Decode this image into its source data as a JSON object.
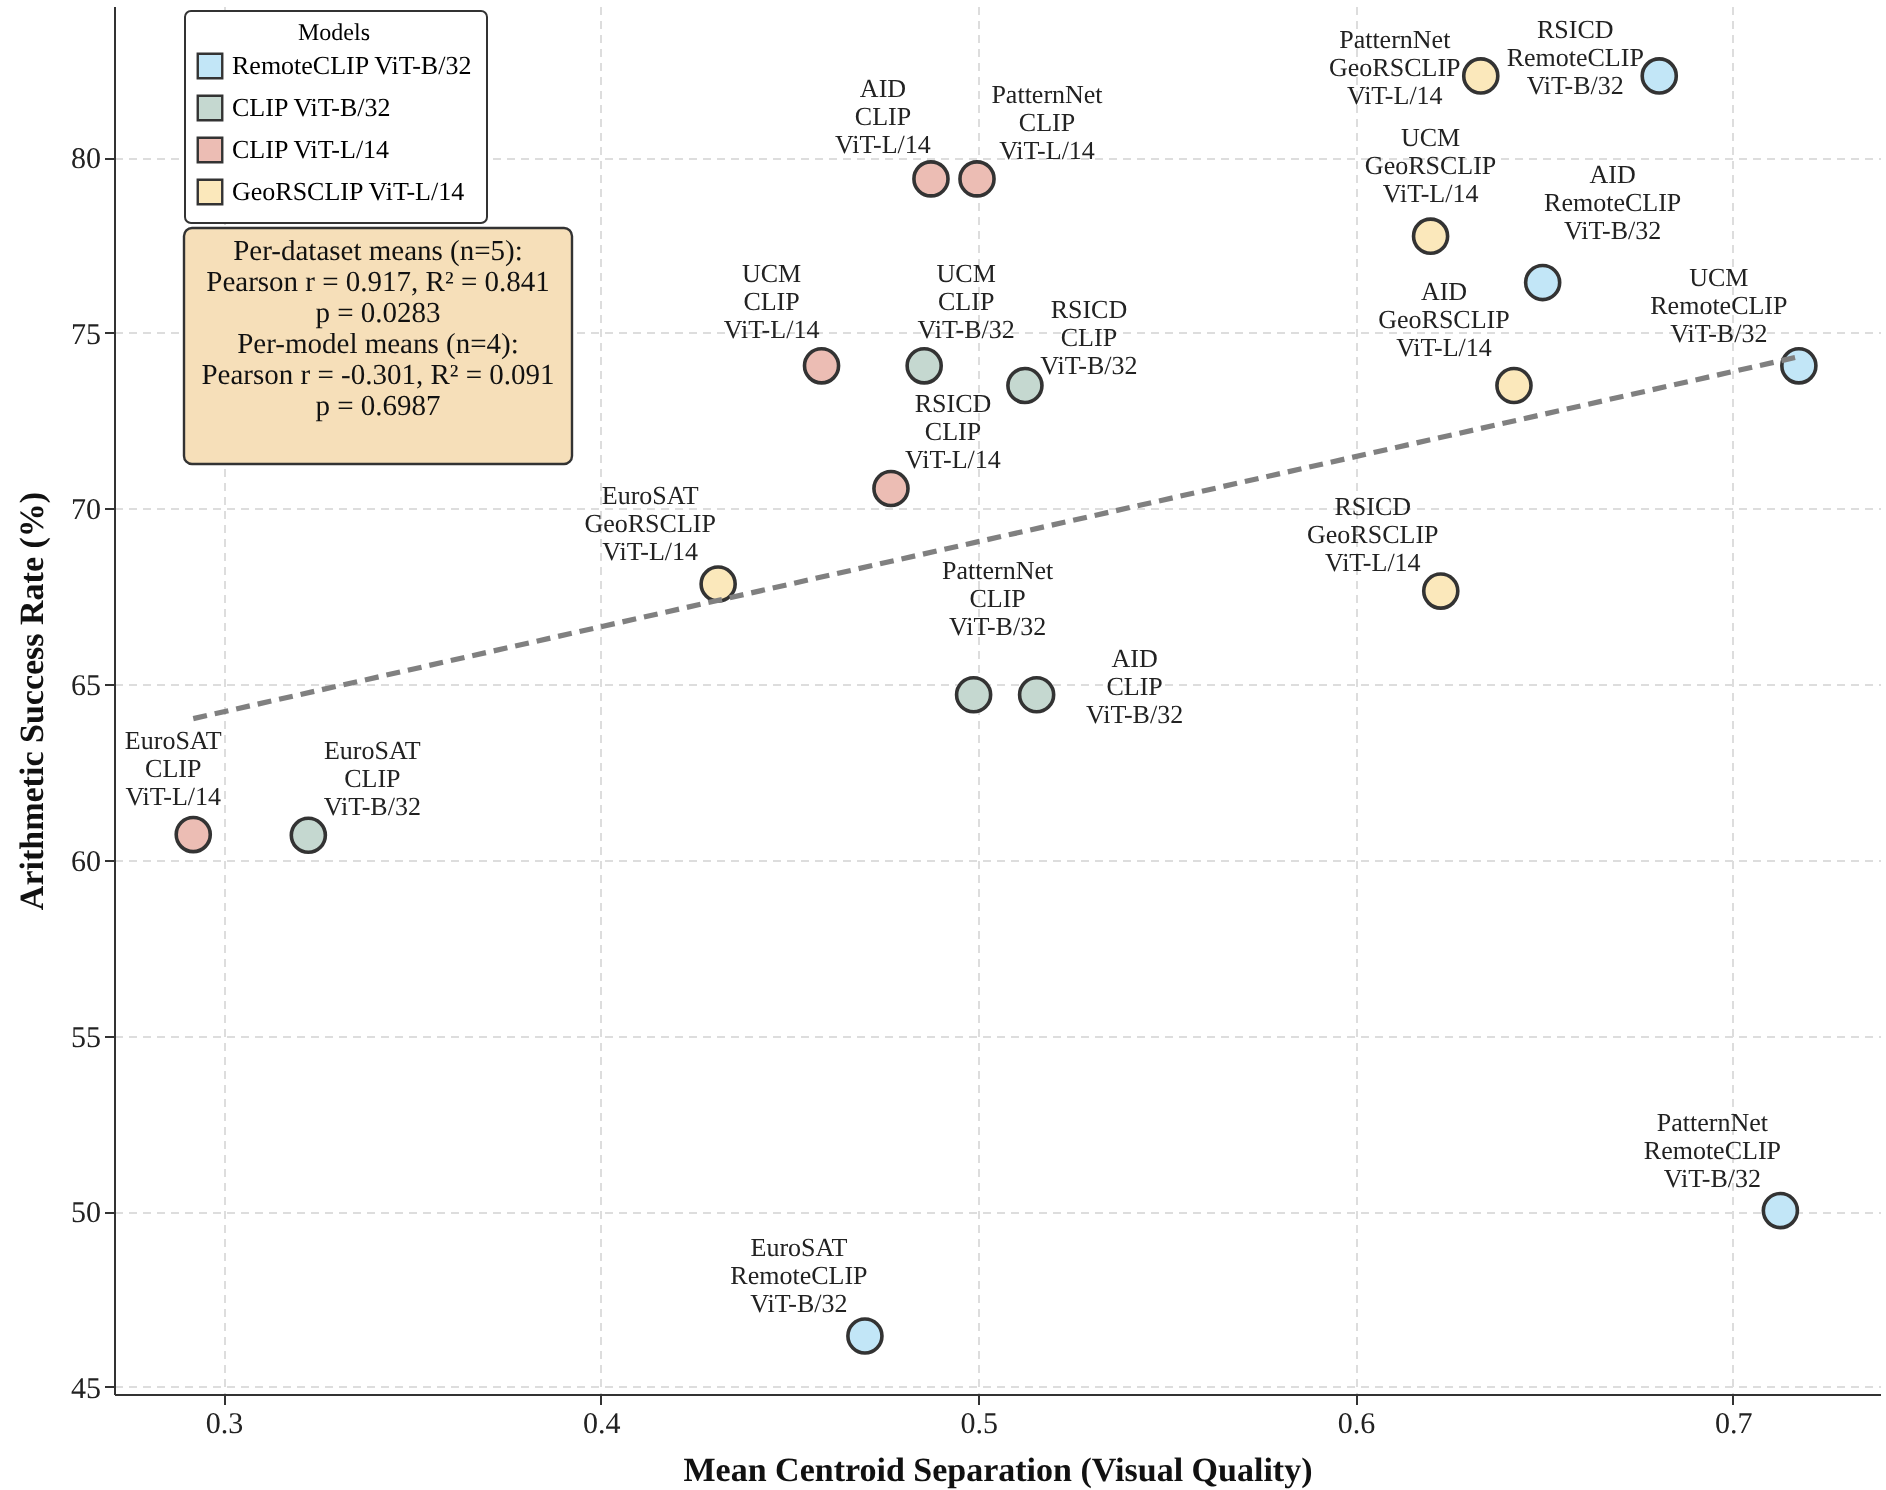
{
  "chart_data": {
    "type": "scatter",
    "xlabel": "Mean Centroid Separation (Visual Quality)",
    "ylabel": "Arithmetic Success Rate (%)",
    "legend_title": "Models",
    "legend": "top left",
    "grid": true,
    "xlim": [
      0.271,
      0.739
    ],
    "xticks": [
      0.3,
      0.4,
      0.5,
      0.6,
      0.7
    ],
    "ylim": [
      44.8,
      84.3
    ],
    "yticks": [
      45,
      50,
      55,
      60,
      65,
      70,
      75,
      80
    ],
    "annotations": [
      "Per-dataset means (n=5):\nPearson r = 0.917, R² = 0.841\np = 0.0283\n\nPer-model means (n=4):\nPearson r = -0.301, R² = 0.091\np = 0.6987",
      {
        "text": "UCM\nRemoteCLIP\nViT-B/32",
        "x": 0.7175,
        "y": 74.06
      },
      {
        "text": "AID\nRemoteCLIP\nViT-B/32",
        "x": 0.6496,
        "y": 76.43
      },
      {
        "text": "RSICD\nRemoteCLIP\nViT-B/32",
        "x": 0.6805,
        "y": 82.31
      },
      {
        "text": "PatternNet\nRemoteCLIP\nViT-B/32",
        "x": 0.7126,
        "y": 50.02
      },
      {
        "text": "EuroSAT\nRemoteCLIP\nViT-B/32",
        "x": 0.47,
        "y": 46.45
      },
      {
        "text": "UCM\nCLIP\nViT-B/32",
        "x": 0.4857,
        "y": 74.06
      },
      {
        "text": "AID\nCLIP\nViT-B/32",
        "x": 0.5155,
        "y": 64.7
      },
      {
        "text": "RSICD\nCLIP\nViT-B/32",
        "x": 0.5124,
        "y": 73.5
      },
      {
        "text": "PatternNet\nCLIP\nViT-B/32",
        "x": 0.4988,
        "y": 64.7
      },
      {
        "text": "EuroSAT\nCLIP\nViT-B/32",
        "x": 0.3225,
        "y": 60.7
      },
      {
        "text": "UCM\nCLIP\nViT-L/14",
        "x": 0.4585,
        "y": 74.06
      },
      {
        "text": "AID\nCLIP\nViT-L/14",
        "x": 0.4875,
        "y": 79.38
      },
      {
        "text": "RSICD\nCLIP\nViT-L/14",
        "x": 0.4769,
        "y": 70.57
      },
      {
        "text": "PatternNet\nCLIP\nViT-L/14",
        "x": 0.4997,
        "y": 79.38
      },
      {
        "text": "EuroSAT\nCLIP\nViT-L/14",
        "x": 0.292,
        "y": 60.72
      },
      {
        "text": "UCM\nGeoRSCLIP\nViT-L/14",
        "x": 0.6199,
        "y": 77.75
      },
      {
        "text": "AID\nGeoRSCLIP\nViT-L/14",
        "x": 0.642,
        "y": 73.5
      },
      {
        "text": "RSICD\nGeoRSCLIP\nViT-L/14",
        "x": 0.6226,
        "y": 67.65
      },
      {
        "text": "PatternNet\nGeoRSCLIP\nViT-L/14",
        "x": 0.6332,
        "y": 82.31
      },
      {
        "text": "EuroSAT\nGeoRSCLIP\nViT-L/14",
        "x": 0.4311,
        "y": 67.85
      }
    ],
    "series": [
      {
        "name": "RemoteCLIP ViT-B/32",
        "color": "#c2e6f7",
        "marker": "circle",
        "x": [
          0.7175,
          0.6496,
          0.6805,
          0.7126,
          0.47
        ],
        "values": [
          74.06,
          76.43,
          82.31,
          50.02,
          46.45
        ]
      },
      {
        "name": "CLIP ViT-B/32",
        "color": "#c5d8d0",
        "marker": "circle",
        "x": [
          0.4857,
          0.5155,
          0.5124,
          0.4988,
          0.3225
        ],
        "values": [
          74.06,
          64.7,
          73.5,
          64.7,
          60.7
        ]
      },
      {
        "name": "CLIP ViT-L/14",
        "color": "#ecbdb4",
        "marker": "circle",
        "x": [
          0.4585,
          0.4875,
          0.4769,
          0.4997,
          0.292
        ],
        "values": [
          74.06,
          79.38,
          70.57,
          79.38,
          60.72
        ]
      },
      {
        "name": "GeoRSCLIP ViT-L/14",
        "color": "#fbe8bb",
        "marker": "circle",
        "x": [
          0.6199,
          0.642,
          0.6226,
          0.6332,
          0.4311
        ],
        "values": [
          77.75,
          73.5,
          67.65,
          82.31,
          67.85
        ]
      },
      {
        "type": "line",
        "color": "#808080",
        "line_style": "dashed",
        "marker": "none",
        "x": [
          0.292,
          0.7175
        ],
        "values": [
          64.02,
          74.32
        ]
      }
    ]
  }
}
